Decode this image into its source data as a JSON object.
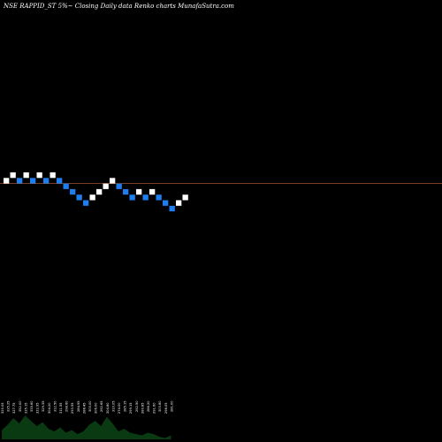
{
  "chart_data": {
    "type": "renko",
    "title": "NSE RAPPID_ST 5%~  Closing Daily data  Renko  charts MunafaSutra.com",
    "colors": {
      "background": "#000000",
      "up_brick": "#ffffff",
      "down_brick": "#1e7ef0",
      "reference_line": "#a0522d",
      "volume_fill": "#0a3a12"
    },
    "bricks": [
      {
        "direction": "up",
        "level": 4
      },
      {
        "direction": "up",
        "level": 5
      },
      {
        "direction": "down",
        "level": 4
      },
      {
        "direction": "up",
        "level": 5
      },
      {
        "direction": "down",
        "level": 4
      },
      {
        "direction": "up",
        "level": 5
      },
      {
        "direction": "down",
        "level": 4
      },
      {
        "direction": "up",
        "level": 5
      },
      {
        "direction": "down",
        "level": 4
      },
      {
        "direction": "down",
        "level": 3
      },
      {
        "direction": "down",
        "level": 2
      },
      {
        "direction": "down",
        "level": 1
      },
      {
        "direction": "down",
        "level": 0
      },
      {
        "direction": "up",
        "level": 1
      },
      {
        "direction": "up",
        "level": 2
      },
      {
        "direction": "up",
        "level": 3
      },
      {
        "direction": "up",
        "level": 4
      },
      {
        "direction": "down",
        "level": 3
      },
      {
        "direction": "down",
        "level": 2
      },
      {
        "direction": "down",
        "level": 1
      },
      {
        "direction": "up",
        "level": 2
      },
      {
        "direction": "down",
        "level": 1
      },
      {
        "direction": "up",
        "level": 2
      },
      {
        "direction": "down",
        "level": 1
      },
      {
        "direction": "down",
        "level": 0
      },
      {
        "direction": "down",
        "level": -1
      },
      {
        "direction": "up",
        "level": 0
      },
      {
        "direction": "up",
        "level": 1
      }
    ],
    "reference_level": 4,
    "volume_labels": [
      "320.05",
      "335.25",
      "327.75",
      "352.00",
      "335.15",
      "335.60",
      "322.95",
      "329.35",
      "304.20",
      "312.50",
      "311.55",
      "298.60",
      "293.55",
      "284.95",
      "288.45",
      "300.00",
      "306.00",
      "292.65",
      "304.80",
      "310.05",
      "274.00",
      "285.15",
      "299.15",
      "292.50",
      "280.85",
      "286.20",
      "291.60",
      "303.80",
      "298.05",
      "281.00"
    ],
    "volume_profile": [
      0.35,
      0.55,
      0.8,
      0.6,
      0.9,
      0.7,
      0.5,
      0.65,
      0.4,
      0.3,
      0.45,
      0.25,
      0.35,
      0.2,
      0.3,
      0.55,
      0.7,
      0.5,
      0.85,
      0.6,
      0.3,
      0.4,
      0.25,
      0.2,
      0.15,
      0.25,
      0.2,
      0.1,
      0.05,
      0.15
    ]
  }
}
